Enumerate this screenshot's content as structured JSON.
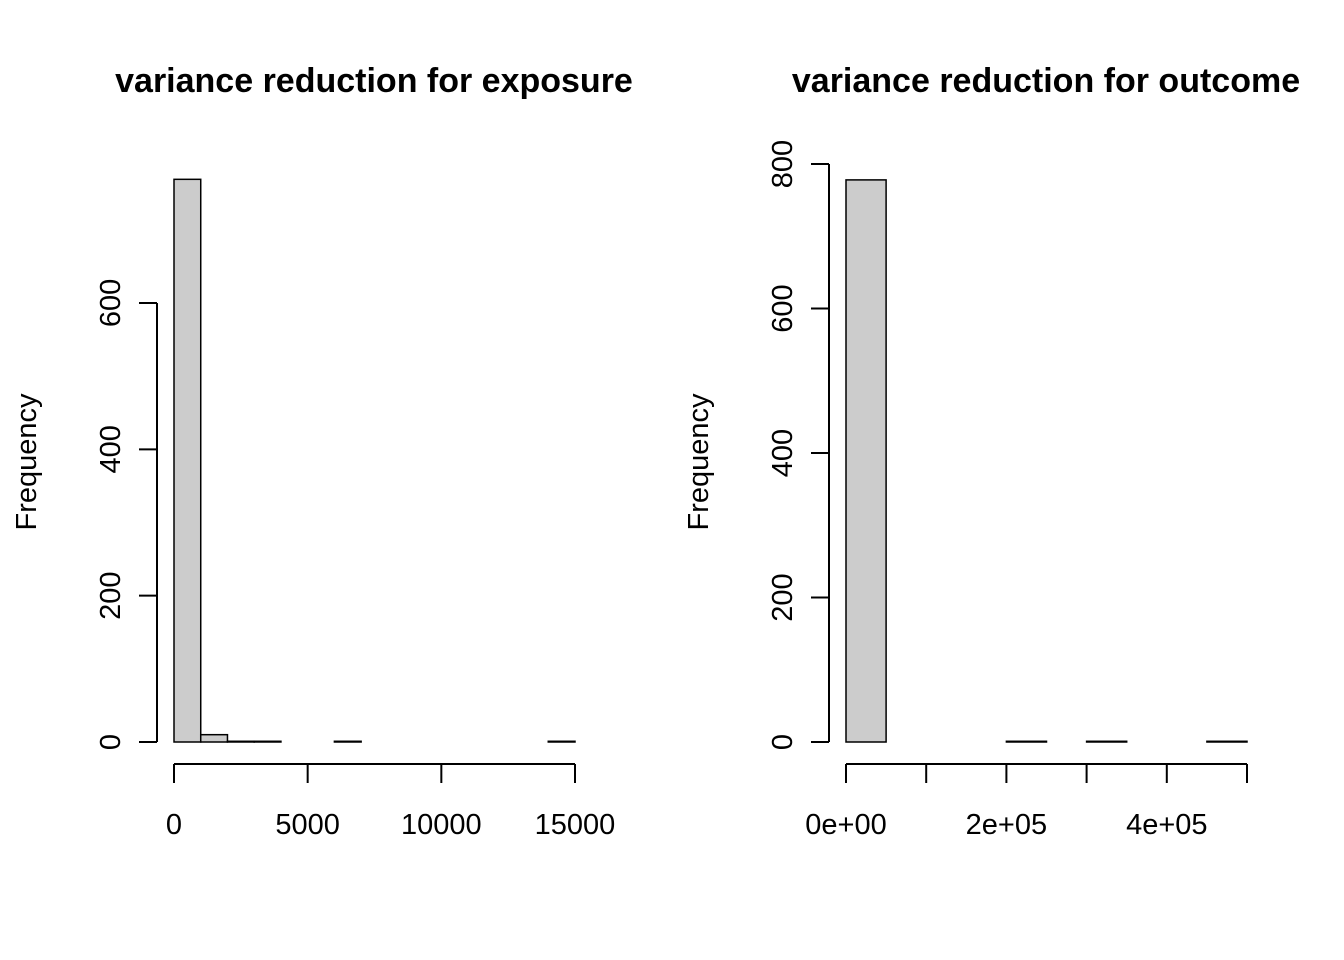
{
  "chart_data": [
    {
      "type": "bar",
      "title": "variance reduction for exposure",
      "xlabel": "",
      "ylabel": "Frequency",
      "bin_edges": [
        0,
        1000,
        2000,
        3000,
        4000,
        5000,
        6000,
        7000,
        8000,
        9000,
        10000,
        11000,
        12000,
        13000,
        14000,
        15000
      ],
      "values": [
        769,
        10,
        1,
        1,
        0,
        0,
        1,
        0,
        0,
        0,
        0,
        0,
        0,
        0,
        1
      ],
      "xlim": [
        0,
        15000
      ],
      "ylim": [
        0,
        769
      ],
      "x_ticks": [
        0,
        5000,
        10000,
        15000
      ],
      "x_tick_labels": [
        "0",
        "5000",
        "10000",
        "15000"
      ],
      "y_ticks": [
        0,
        200,
        400,
        600
      ],
      "y_tick_labels": [
        "0",
        "200",
        "400",
        "600"
      ],
      "bar_color": "#cccccc",
      "grid": false
    },
    {
      "type": "bar",
      "title": "variance reduction for outcome",
      "xlabel": "",
      "ylabel": "Frequency",
      "bin_edges": [
        0,
        50000,
        100000,
        150000,
        200000,
        250000,
        300000,
        350000,
        400000,
        450000,
        500000
      ],
      "values": [
        778,
        0,
        0,
        0,
        1,
        0,
        1,
        0,
        0,
        1
      ],
      "xlim": [
        0,
        500000
      ],
      "ylim": [
        0,
        800
      ],
      "x_ticks": [
        0,
        100000,
        200000,
        300000,
        400000,
        500000
      ],
      "x_tick_labels": [
        "0e+00",
        "",
        "2e+05",
        "",
        "4e+05",
        ""
      ],
      "y_ticks": [
        0,
        200,
        400,
        600,
        800
      ],
      "y_tick_labels": [
        "0",
        "200",
        "400",
        "600",
        "800"
      ],
      "bar_color": "#cccccc",
      "grid": false
    }
  ]
}
